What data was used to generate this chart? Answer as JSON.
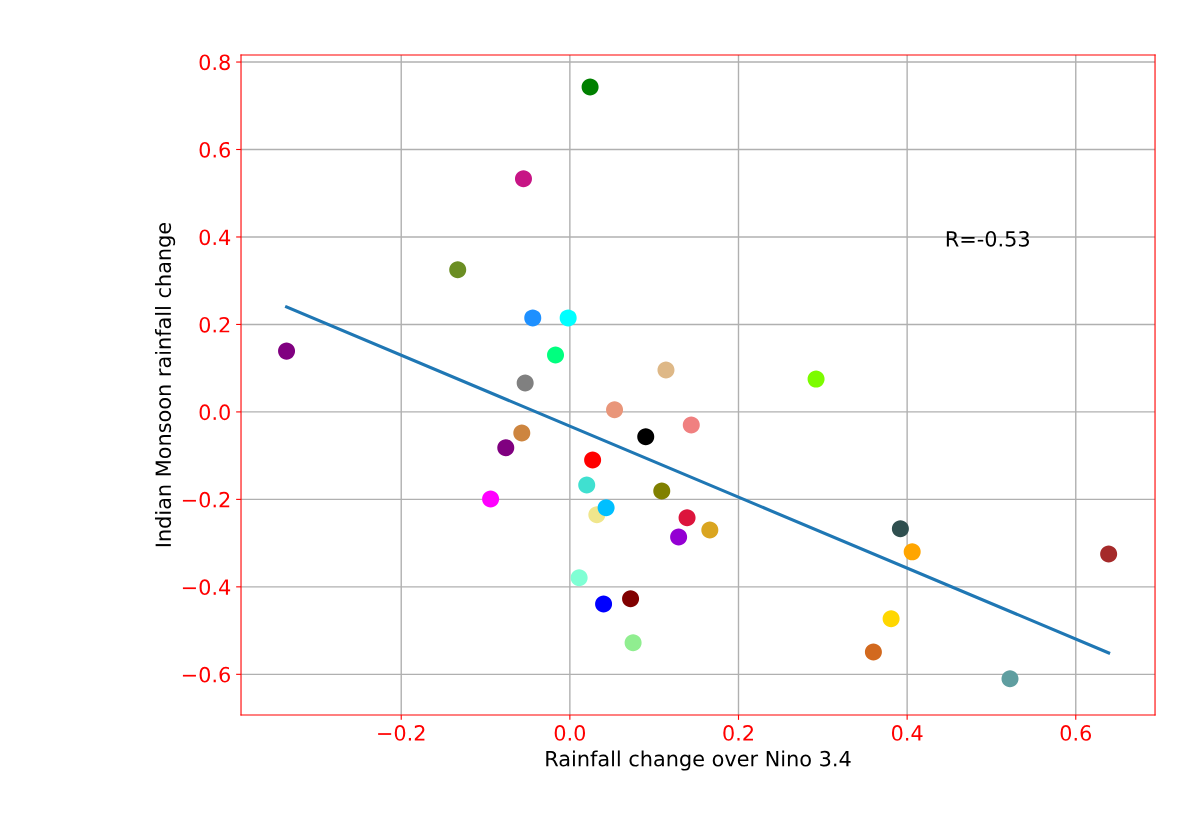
{
  "chart_data": {
    "type": "scatter",
    "xlabel": "Rainfall change over Nino 3.4",
    "ylabel": "Indian Monsoon rainfall change",
    "annotations": [
      "R=-0.53"
    ],
    "xlim": [
      -0.39,
      0.694
    ],
    "ylim": [
      -0.693,
      0.816
    ],
    "xticks": [
      {
        "value": -0.2,
        "label": "−0.2"
      },
      {
        "value": 0.0,
        "label": "0.0"
      },
      {
        "value": 0.2,
        "label": "0.2"
      },
      {
        "value": 0.4,
        "label": "0.4"
      },
      {
        "value": 0.6,
        "label": "0.6"
      }
    ],
    "yticks": [
      {
        "value": -0.6,
        "label": "−0.6"
      },
      {
        "value": -0.4,
        "label": "−0.4"
      },
      {
        "value": -0.2,
        "label": "−0.2"
      },
      {
        "value": 0.0,
        "label": "0.0"
      },
      {
        "value": 0.2,
        "label": "0.2"
      },
      {
        "value": 0.4,
        "label": "0.4"
      },
      {
        "value": 0.6,
        "label": "0.6"
      },
      {
        "value": 0.8,
        "label": "0.8"
      }
    ],
    "grid": true,
    "series": [
      {
        "marker": "circle",
        "x": [
          0.024,
          -0.055,
          -0.133,
          -0.044,
          -0.002,
          -0.017,
          -0.336,
          -0.053,
          0.114,
          0.053,
          0.144,
          0.09,
          -0.057,
          -0.076,
          0.027,
          -0.094,
          0.02,
          0.032,
          0.043,
          0.109,
          0.139,
          0.166,
          0.129,
          0.011,
          0.04,
          0.072,
          0.075,
          0.292,
          0.392,
          0.406,
          0.381,
          0.36,
          0.522,
          0.639
        ],
        "values": [
          0.743,
          0.533,
          0.325,
          0.215,
          0.215,
          0.13,
          0.139,
          0.066,
          0.096,
          0.005,
          -0.03,
          -0.057,
          -0.048,
          -0.082,
          -0.11,
          -0.199,
          -0.167,
          -0.235,
          -0.219,
          -0.181,
          -0.242,
          -0.27,
          -0.286,
          -0.379,
          -0.439,
          -0.427,
          -0.528,
          0.075,
          -0.267,
          -0.32,
          -0.473,
          -0.549,
          -0.61,
          -0.325
        ],
        "colors": [
          "#008000",
          "#c71585",
          "#6b8e23",
          "#1e90ff",
          "#00ffff",
          "#00ff7f",
          "#800080",
          "#808080",
          "#deb887",
          "#e9967a",
          "#f08080",
          "#000000",
          "#cd853f",
          "#800080",
          "#ff0000",
          "#ff00ff",
          "#40e0d0",
          "#f0e68c",
          "#00bfff",
          "#808000",
          "#dc143c",
          "#daa520",
          "#9400d3",
          "#7fffd4",
          "#0000ff",
          "#800000",
          "#90ee90",
          "#7cfc00",
          "#2f4f4f",
          "#ffa500",
          "#ffd700",
          "#d2691e",
          "#5f9ea0",
          "#a52a2a"
        ]
      },
      {
        "type": "line",
        "x": [
          -0.336,
          0.639
        ],
        "values": [
          0.24,
          -0.551
        ],
        "color": "#1f77b4"
      }
    ]
  }
}
